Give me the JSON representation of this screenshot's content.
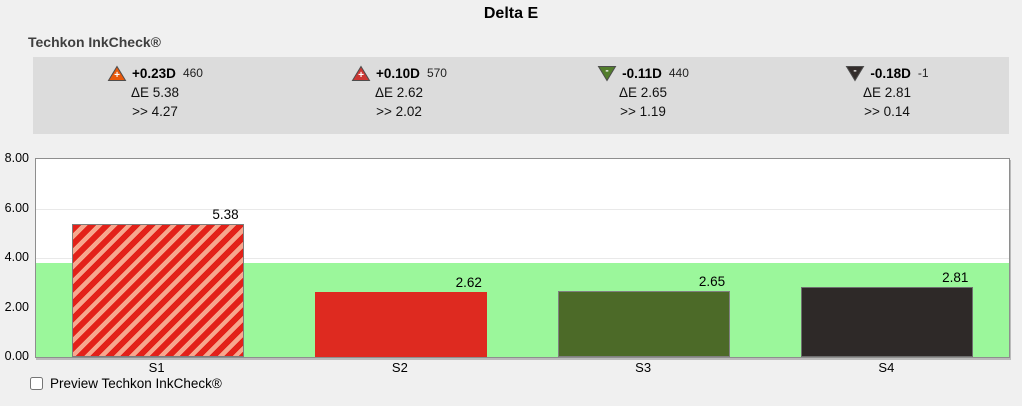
{
  "title": "Delta E",
  "header": {
    "app_name": "Techkon InkCheck®"
  },
  "colors": {
    "background": "#f0f0f0",
    "panel": "#dcdcdc",
    "plot_border": "#8e8e8e",
    "gridline": "#e9e9e9",
    "tolerance_band": "#9bf79b"
  },
  "stats": {
    "items": [
      {
        "direction": "up",
        "icon_color": "#e8590c",
        "icon_symbol": "+",
        "density": "+0.23D",
        "patch": "460",
        "delta_e": "ΔE 5.38",
        "deviation": ">> 4.27"
      },
      {
        "direction": "up",
        "icon_color": "#cc3733",
        "icon_symbol": "+",
        "density": "+0.10D",
        "patch": "570",
        "delta_e": "ΔE 2.62",
        "deviation": ">> 2.02"
      },
      {
        "direction": "down",
        "icon_color": "#527d2c",
        "icon_symbol": "-",
        "density": "-0.11D",
        "patch": "440",
        "delta_e": "ΔE 2.65",
        "deviation": ">> 1.19"
      },
      {
        "direction": "down",
        "icon_color": "#332d2b",
        "icon_symbol": "-",
        "density": "-0.18D",
        "patch": "-1",
        "delta_e": "ΔE 2.81",
        "deviation": ">> 0.14"
      }
    ]
  },
  "chart_data": {
    "type": "bar",
    "title": "Delta E",
    "categories": [
      "S1",
      "S2",
      "S3",
      "S4"
    ],
    "values": [
      5.38,
      2.62,
      2.65,
      2.81
    ],
    "value_labels": [
      "5.38",
      "2.62",
      "2.65",
      "2.81"
    ],
    "xlabel": "",
    "ylabel": "",
    "ylim": [
      0,
      8
    ],
    "yticks": [
      "8.00",
      "6.00",
      "4.00",
      "2.00",
      "0.00"
    ],
    "ytick_values": [
      8,
      6,
      4,
      2,
      0
    ],
    "grid": true,
    "legend": "none",
    "tolerance_band": {
      "min": 0,
      "max": 3.8,
      "color": "#9bf79b"
    },
    "bars": [
      {
        "category": "S1",
        "value": 5.38,
        "fill": "#f7a78e",
        "hatch": true,
        "hatch_color": "#e32119",
        "border": "#7c7c7c"
      },
      {
        "category": "S2",
        "value": 2.62,
        "fill": "#de2a20",
        "hatch": false,
        "hatch_color": null,
        "border": null
      },
      {
        "category": "S3",
        "value": 2.65,
        "fill": "#4c6a28",
        "hatch": false,
        "hatch_color": null,
        "border": "#808080"
      },
      {
        "category": "S4",
        "value": 2.81,
        "fill": "#2e2928",
        "hatch": false,
        "hatch_color": null,
        "border": "#6f6f6f"
      }
    ]
  },
  "footer": {
    "preview_label": "Preview Techkon InkCheck®",
    "checkbox_checked": false
  }
}
